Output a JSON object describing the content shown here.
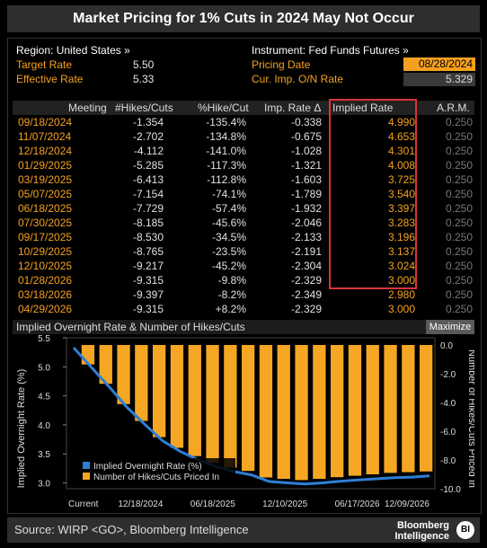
{
  "title": "Market Pricing for 1% Cuts in 2024 May Not Occur",
  "header": {
    "region_label": "Region: United States »",
    "instrument_label": "Instrument: Fed Funds Futures »",
    "target_rate_label": "Target Rate",
    "target_rate_value": "5.50",
    "effective_rate_label": "Effective Rate",
    "effective_rate_value": "5.33",
    "pricing_date_label": "Pricing Date",
    "pricing_date_value": "08/28/2024",
    "cur_imp_label": "Cur. Imp. O/N Rate",
    "cur_imp_value": "5.329"
  },
  "table": {
    "columns": [
      "Meeting",
      "#Hikes/Cuts",
      "%Hike/Cut",
      "Imp. Rate Δ",
      "Implied Rate",
      "A.R.M."
    ],
    "rows": [
      [
        "09/18/2024",
        "-1.354",
        "-135.4%",
        "-0.338",
        "4.990",
        "0.250"
      ],
      [
        "11/07/2024",
        "-2.702",
        "-134.8%",
        "-0.675",
        "4.653",
        "0.250"
      ],
      [
        "12/18/2024",
        "-4.112",
        "-141.0%",
        "-1.028",
        "4.301",
        "0.250"
      ],
      [
        "01/29/2025",
        "-5.285",
        "-117.3%",
        "-1.321",
        "4.008",
        "0.250"
      ],
      [
        "03/19/2025",
        "-6.413",
        "-112.8%",
        "-1.603",
        "3.725",
        "0.250"
      ],
      [
        "05/07/2025",
        "-7.154",
        "-74.1%",
        "-1.789",
        "3.540",
        "0.250"
      ],
      [
        "06/18/2025",
        "-7.729",
        "-57.4%",
        "-1.932",
        "3.397",
        "0.250"
      ],
      [
        "07/30/2025",
        "-8.185",
        "-45.6%",
        "-2.046",
        "3.283",
        "0.250"
      ],
      [
        "09/17/2025",
        "-8.530",
        "-34.5%",
        "-2.133",
        "3.196",
        "0.250"
      ],
      [
        "10/29/2025",
        "-8.765",
        "-23.5%",
        "-2.191",
        "3.137",
        "0.250"
      ],
      [
        "12/10/2025",
        "-9.217",
        "-45.2%",
        "-2.304",
        "3.024",
        "0.250"
      ],
      [
        "01/28/2026",
        "-9.315",
        "-9.8%",
        "-2.329",
        "3.000",
        "0.250"
      ],
      [
        "03/18/2026",
        "-9.397",
        "-8.2%",
        "-2.349",
        "2.980",
        "0.250"
      ],
      [
        "04/29/2026",
        "-9.315",
        "+8.2%",
        "-2.329",
        "3.000",
        "0.250"
      ]
    ]
  },
  "chart_title": "Implied Overnight Rate & Number of Hikes/Cuts",
  "maximize_label": "Maximize",
  "chart_data": {
    "type": "bar",
    "left_axis_label": "Implied Overnight Rate (%)",
    "right_axis_label": "Number of Hikes/Cuts Priced In",
    "left_ylim": [
      2.9,
      5.5
    ],
    "right_ylim": [
      -10,
      0.5
    ],
    "left_ticks": [
      "5.5",
      "5.0",
      "4.5",
      "4.0",
      "3.5",
      "3.0"
    ],
    "right_ticks": [
      "0.0",
      "-2.0",
      "-4.0",
      "-6.0",
      "-8.0",
      "-10.0"
    ],
    "x_tick_labels": [
      "Current",
      "12/18/2024",
      "06/18/2025",
      "12/10/2025",
      "06/17/2026",
      "12/09/2026"
    ],
    "series": [
      {
        "name": "Implied Overnight Rate (%)",
        "kind": "line",
        "color": "#2e7fd6",
        "values": [
          5.329,
          4.99,
          4.653,
          4.301,
          4.008,
          3.725,
          3.54,
          3.397,
          3.283,
          3.196,
          3.137,
          3.024,
          3.0,
          2.98,
          3.0,
          3.03,
          3.05,
          3.07,
          3.09,
          3.1,
          3.12
        ]
      },
      {
        "name": "Number of Hikes/Cuts Priced In",
        "kind": "bar",
        "color": "#f5a623",
        "values": [
          -1.354,
          -2.702,
          -4.112,
          -5.285,
          -6.413,
          -7.154,
          -7.729,
          -8.185,
          -8.53,
          -8.765,
          -9.217,
          -9.315,
          -9.397,
          -9.315,
          -9.2,
          -9.1,
          -9.0,
          -8.9,
          -8.85,
          -8.8
        ]
      }
    ]
  },
  "footer": {
    "source": "Source: WIRP <GO>, Bloomberg Intelligence",
    "logo_line1": "Bloomberg",
    "logo_line2": "Intelligence",
    "logo_badge": "BI"
  },
  "colors": {
    "accent_orange": "#f5a020",
    "highlight_red": "#d9333a",
    "line_blue": "#2e7fd6"
  }
}
